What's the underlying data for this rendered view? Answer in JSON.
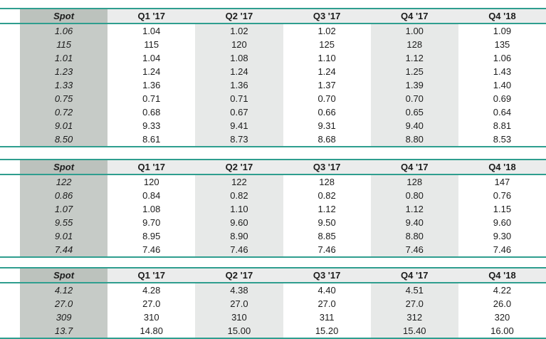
{
  "styles": {
    "accent_line_color": "#2f9e8f",
    "spot_header_bg": "#bcc2bd",
    "spot_column_bg": "#c6cbc7",
    "header_row_bg": "#ebecec",
    "shaded_column_bg": "#e7e9e8",
    "text_color": "#1c1c1c"
  },
  "columns": [
    "Spot",
    "Q1 '17",
    "Q2 '17",
    "Q3 '17",
    "Q4 '17",
    "Q4 '18"
  ],
  "tables": [
    {
      "name": "forecast-table-1",
      "rows": [
        [
          "1.06",
          "1.04",
          "1.02",
          "1.02",
          "1.00",
          "1.09"
        ],
        [
          "115",
          "115",
          "120",
          "125",
          "128",
          "135"
        ],
        [
          "1.01",
          "1.04",
          "1.08",
          "1.10",
          "1.12",
          "1.06"
        ],
        [
          "1.23",
          "1.24",
          "1.24",
          "1.24",
          "1.25",
          "1.43"
        ],
        [
          "1.33",
          "1.36",
          "1.36",
          "1.37",
          "1.39",
          "1.40"
        ],
        [
          "0.75",
          "0.71",
          "0.71",
          "0.70",
          "0.70",
          "0.69"
        ],
        [
          "0.72",
          "0.68",
          "0.67",
          "0.66",
          "0.65",
          "0.64"
        ],
        [
          "9.01",
          "9.33",
          "9.41",
          "9.31",
          "9.40",
          "8.81"
        ],
        [
          "8.50",
          "8.61",
          "8.73",
          "8.68",
          "8.80",
          "8.53"
        ]
      ]
    },
    {
      "name": "forecast-table-2",
      "rows": [
        [
          "122",
          "120",
          "122",
          "128",
          "128",
          "147"
        ],
        [
          "0.86",
          "0.84",
          "0.82",
          "0.82",
          "0.80",
          "0.76"
        ],
        [
          "1.07",
          "1.08",
          "1.10",
          "1.12",
          "1.12",
          "1.15"
        ],
        [
          "9.55",
          "9.70",
          "9.60",
          "9.50",
          "9.40",
          "9.60"
        ],
        [
          "9.01",
          "8.95",
          "8.90",
          "8.85",
          "8.80",
          "9.30"
        ],
        [
          "7.44",
          "7.46",
          "7.46",
          "7.46",
          "7.46",
          "7.46"
        ]
      ]
    },
    {
      "name": "forecast-table-3",
      "rows": [
        [
          "4.12",
          "4.28",
          "4.38",
          "4.40",
          "4.51",
          "4.22"
        ],
        [
          "27.0",
          "27.0",
          "27.0",
          "27.0",
          "27.0",
          "26.0"
        ],
        [
          "309",
          "310",
          "310",
          "311",
          "312",
          "320"
        ],
        [
          "13.7",
          "14.80",
          "15.00",
          "15.20",
          "15.40",
          "16.00"
        ]
      ]
    }
  ]
}
